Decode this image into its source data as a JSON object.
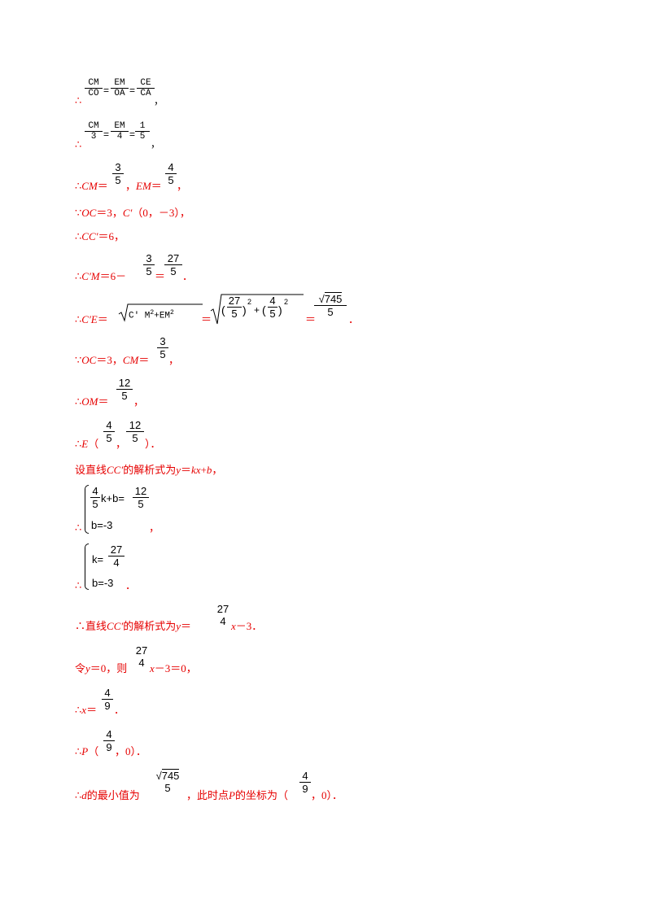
{
  "therefore": "∴",
  "because": "∵",
  "l1": {
    "f1n": "CM",
    "f1d": "CO",
    "eq1": "=",
    "f2n": "EM",
    "f2d": "OA",
    "eq2": "=",
    "f3n": "CE",
    "f3d": "CA",
    "tail": "，"
  },
  "l2": {
    "f1n": "CM",
    "f1d": "3",
    "eq1": "=",
    "f2n": "EM",
    "f2d": "4",
    "eq2": "=",
    "f3n": "1",
    "f3d": "5",
    "tail": "，"
  },
  "l3": {
    "a": "CM",
    "eq": "＝",
    "f1n": "3",
    "f1d": "5",
    "mid": "，",
    "b": "EM",
    "eq2": "＝",
    "f2n": "4",
    "f2d": "5",
    "tail": "，"
  },
  "l4": {
    "text1": "OC",
    "text2": "＝3，",
    "text3": "C′",
    "text4": "（0，－3），"
  },
  "l5": {
    "a": "CC′",
    "b": "＝6，"
  },
  "l6": {
    "a": "C′M",
    "b": "＝6－",
    "f1n": "3",
    "f1d": "5",
    "eq": "＝",
    "f2n": "27",
    "f2d": "5",
    "tail": "．"
  },
  "l7": {
    "a": "C′E",
    "eq": "＝",
    "rad1": "C′ M",
    "sq1": "2",
    "plus1": "+EM",
    "sq2": "2",
    "eq2": "＝",
    "lp": "(",
    "fn1": "27",
    "fd1": "5",
    "rp": ")",
    "pw": "2",
    "plus": "+",
    "lp2": "(",
    "fn2": "4",
    "fd2": "5",
    "rp2": ")",
    "pw2": "2",
    "eq3": "＝",
    "rn": "745",
    "rd": "5",
    "tail": "．"
  },
  "l8": {
    "text1": "OC",
    "text2": "＝3，",
    "text3": "CM",
    "text4": "＝",
    "fn": "3",
    "fd": "5",
    "tail": "，"
  },
  "l9": {
    "a": "OM",
    "eq": "＝",
    "fn": "12",
    "fd": "5",
    "tail": "，"
  },
  "l10": {
    "a": "E",
    "lp": "（",
    "f1n": "4",
    "f1d": "5",
    "comma": "，",
    "f2n": "12",
    "f2d": "5",
    "rp": "）．"
  },
  "l11": {
    "text": "设直线",
    "cc": "CC′",
    "text2": "的解析式为",
    "y": "y",
    "eq": "＝",
    "kx": "kx",
    "plus": "+",
    "b": "b",
    "tail": "，"
  },
  "l12": {
    "r1a_n": "4",
    "r1a_d": "5",
    "r1b": "k+b=",
    "r1c_n": "12",
    "r1c_d": "5",
    "r2": "b=-3",
    "tail": "，"
  },
  "l13": {
    "r1a": "k=",
    "r1b_n": "27",
    "r1b_d": "4",
    "r2": "b=-3",
    "tail": "．"
  },
  "l14": {
    "text": "直线",
    "cc": "CC′",
    "text2": "的解析式为",
    "y": "y",
    "eq": "＝",
    "fn": "27",
    "fd": "4",
    "x": "x",
    "tail": "－3．"
  },
  "l15": {
    "text": "令",
    "y": "y",
    "text2": "＝0，则",
    "fn": "27",
    "fd": "4",
    "x": "x",
    "tail": "－3＝0，"
  },
  "l16": {
    "x": "x",
    "eq": "＝",
    "fn": "4",
    "fd": "9",
    "tail": "．"
  },
  "l17": {
    "p": "P",
    "lp": "（",
    "fn": "4",
    "fd": "9",
    "tail": "，0）．"
  },
  "l18": {
    "d": "d",
    "text": "的最小值为",
    "rn": "745",
    "rd": "5",
    "text2": "，此时点",
    "p": "P",
    "text3": "的坐标为（",
    "fn": "4",
    "fd": "9",
    "tail": "，0）．"
  }
}
